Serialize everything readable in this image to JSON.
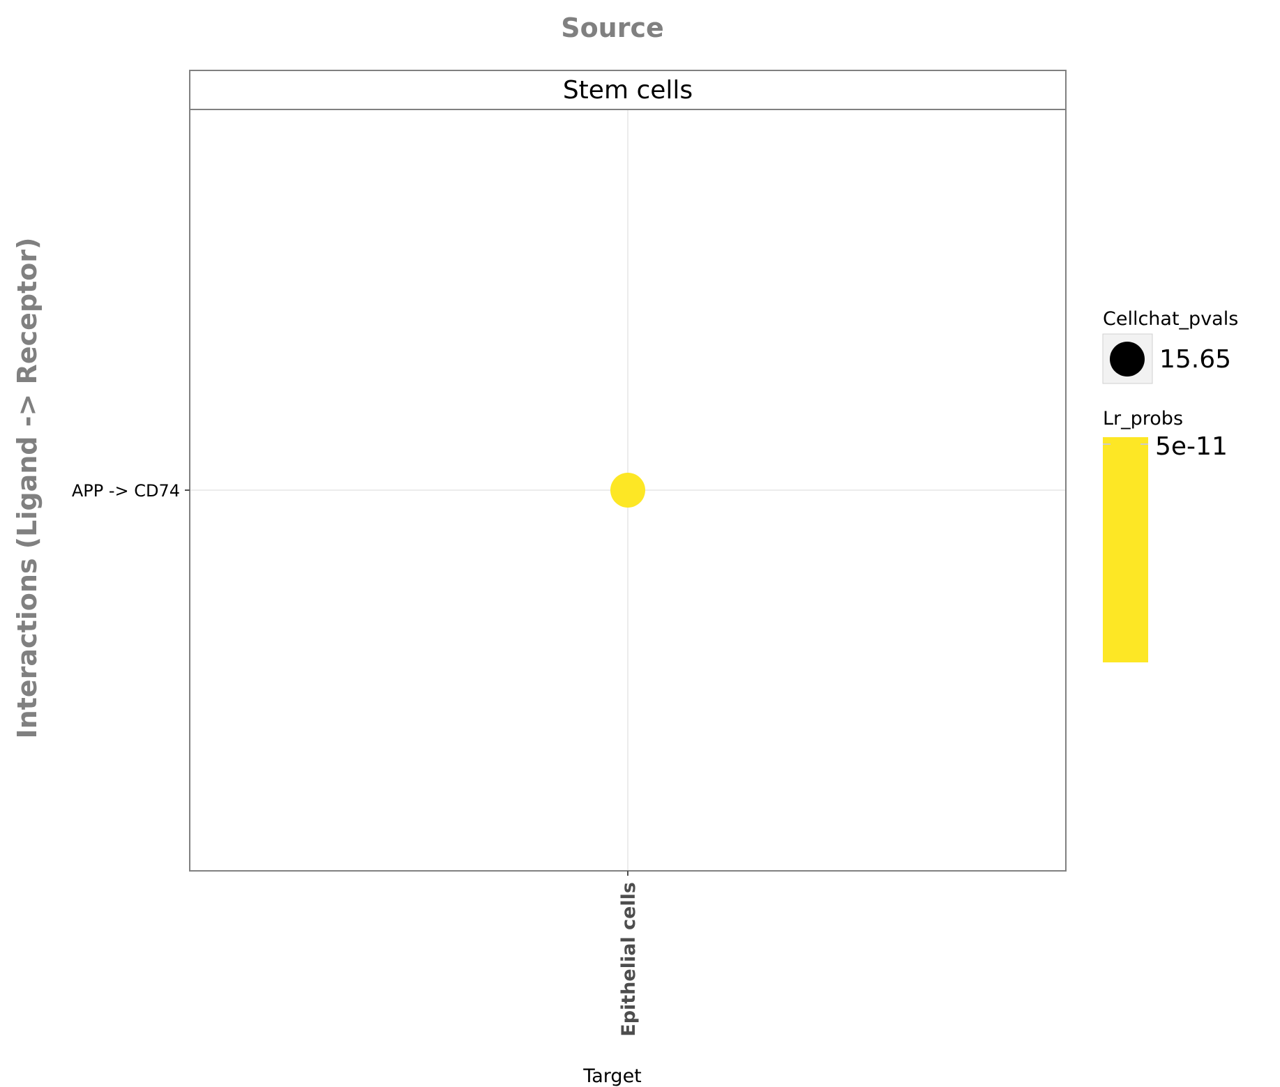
{
  "chart_data": {
    "type": "scatter",
    "title": "Source",
    "facet_label": "Stem cells",
    "xlabel": "Target",
    "ylabel": "Interactions (Ligand -> Receptor)",
    "x_categories": [
      "Epithelial cells"
    ],
    "y_categories": [
      "APP -> CD74"
    ],
    "points": [
      {
        "x": "Epithelial cells",
        "y": "APP -> CD74",
        "cellchat_pvals": 15.65,
        "lr_probs": 5e-11,
        "color": "#fde725"
      }
    ],
    "grid": true,
    "legend_placement": "right",
    "legend": {
      "size": {
        "title": "Cellchat_pvals",
        "entries": [
          {
            "label": "15.65",
            "value": 15.65,
            "color": "#000000"
          }
        ]
      },
      "color": {
        "title": "Lr_probs",
        "ticks": [
          {
            "label": "5e-11",
            "value": 5e-11
          }
        ],
        "colormap": [
          "#fde725",
          "#fde725"
        ]
      }
    }
  },
  "colors": {
    "frame": "#808080",
    "title_text": "#808080",
    "tick_text": "#4d4d4d",
    "grid": "#e6e6e6",
    "point": "#fde725",
    "legend_key_bg": "#f2f2f2"
  }
}
